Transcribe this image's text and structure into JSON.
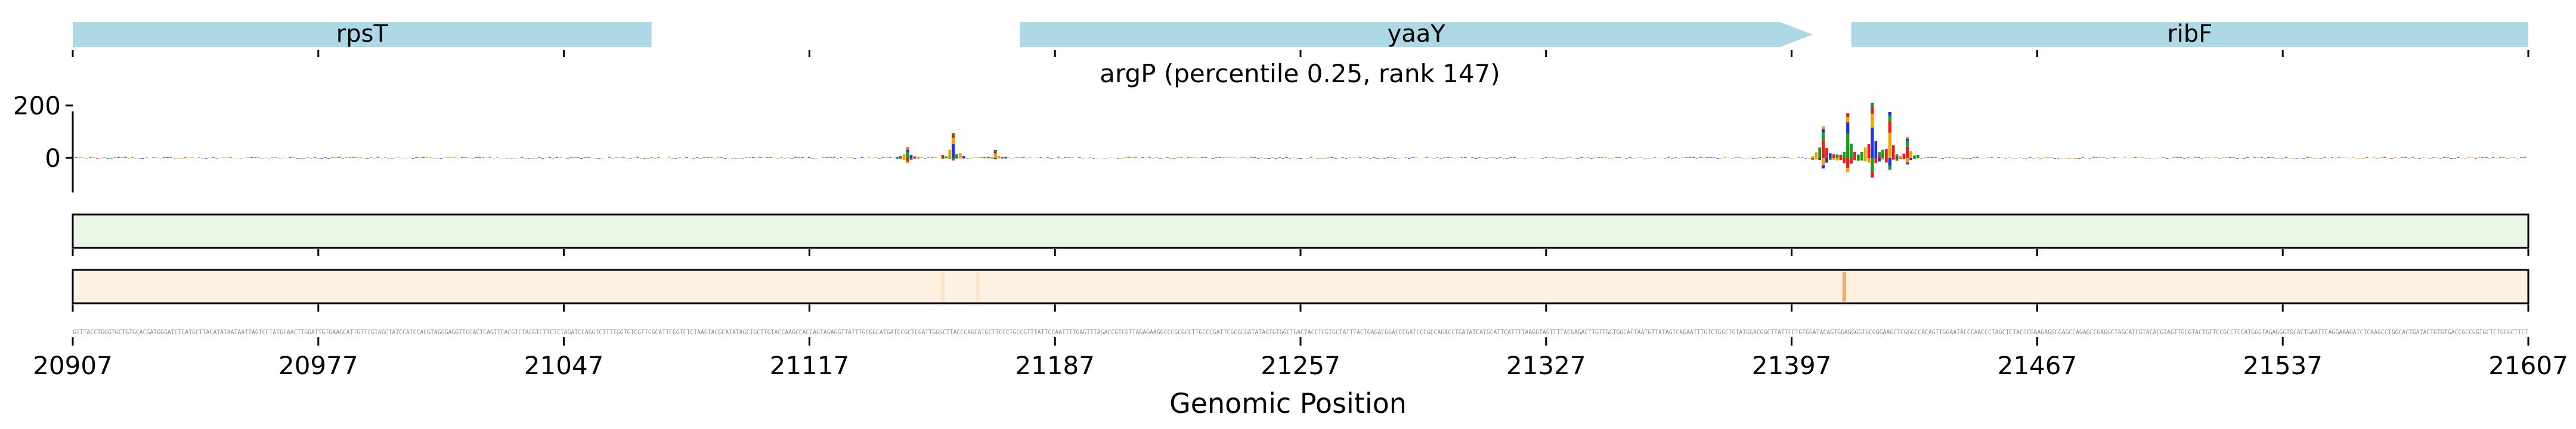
{
  "chart_data": {
    "type": "sequence-logo-track",
    "title": "argP (percentile 0.25, rank 147)",
    "xlabel": "Genomic Position",
    "ylabel": "",
    "xlim": [
      20907,
      21607
    ],
    "x_ticks": [
      20907,
      20977,
      21047,
      21117,
      21187,
      21257,
      21327,
      21397,
      21467,
      21537,
      21607
    ],
    "ylim": [
      -100,
      200
    ],
    "y_ticks": [
      0,
      200
    ],
    "genes": [
      {
        "name": "rpsT",
        "start": 20907,
        "end": 21072,
        "strand": "+",
        "arrow": false
      },
      {
        "name": "yaaY",
        "start": 21177,
        "end": 21403,
        "strand": "+",
        "arrow": true
      },
      {
        "name": "ribF",
        "start": 21414,
        "end": 21607,
        "strand": "+",
        "arrow": false
      }
    ],
    "series": [
      {
        "track": "attribution_logo",
        "peaks": [
          {
            "x": 21145,
            "top_value": 40,
            "bottom_value": -20
          },
          {
            "x": 21158,
            "top_value": 95,
            "bottom_value": -10
          },
          {
            "x": 21170,
            "top_value": 30,
            "bottom_value": -5
          },
          {
            "x": 21406,
            "top_value": 120,
            "bottom_value": -40
          },
          {
            "x": 21413,
            "top_value": 170,
            "bottom_value": -55
          },
          {
            "x": 21420,
            "top_value": 210,
            "bottom_value": -75
          },
          {
            "x": 21425,
            "top_value": 175,
            "bottom_value": -45
          },
          {
            "x": 21430,
            "top_value": 80,
            "bottom_value": -25
          }
        ]
      },
      {
        "track": "green_heatmap",
        "color": "#e9f5e3",
        "highlights": []
      },
      {
        "track": "orange_heatmap",
        "color": "#fdf0e1",
        "highlights": [
          {
            "x": 21155,
            "intensity": 0.15
          },
          {
            "x": 21165,
            "intensity": 0.12
          },
          {
            "x": 21412,
            "intensity": 0.7
          }
        ]
      }
    ],
    "base_colors": {
      "A": "#1a9b1a",
      "C": "#1f35d9",
      "G": "#f2a100",
      "T": "#e51f1f"
    },
    "gene_color": "#add8e6"
  }
}
